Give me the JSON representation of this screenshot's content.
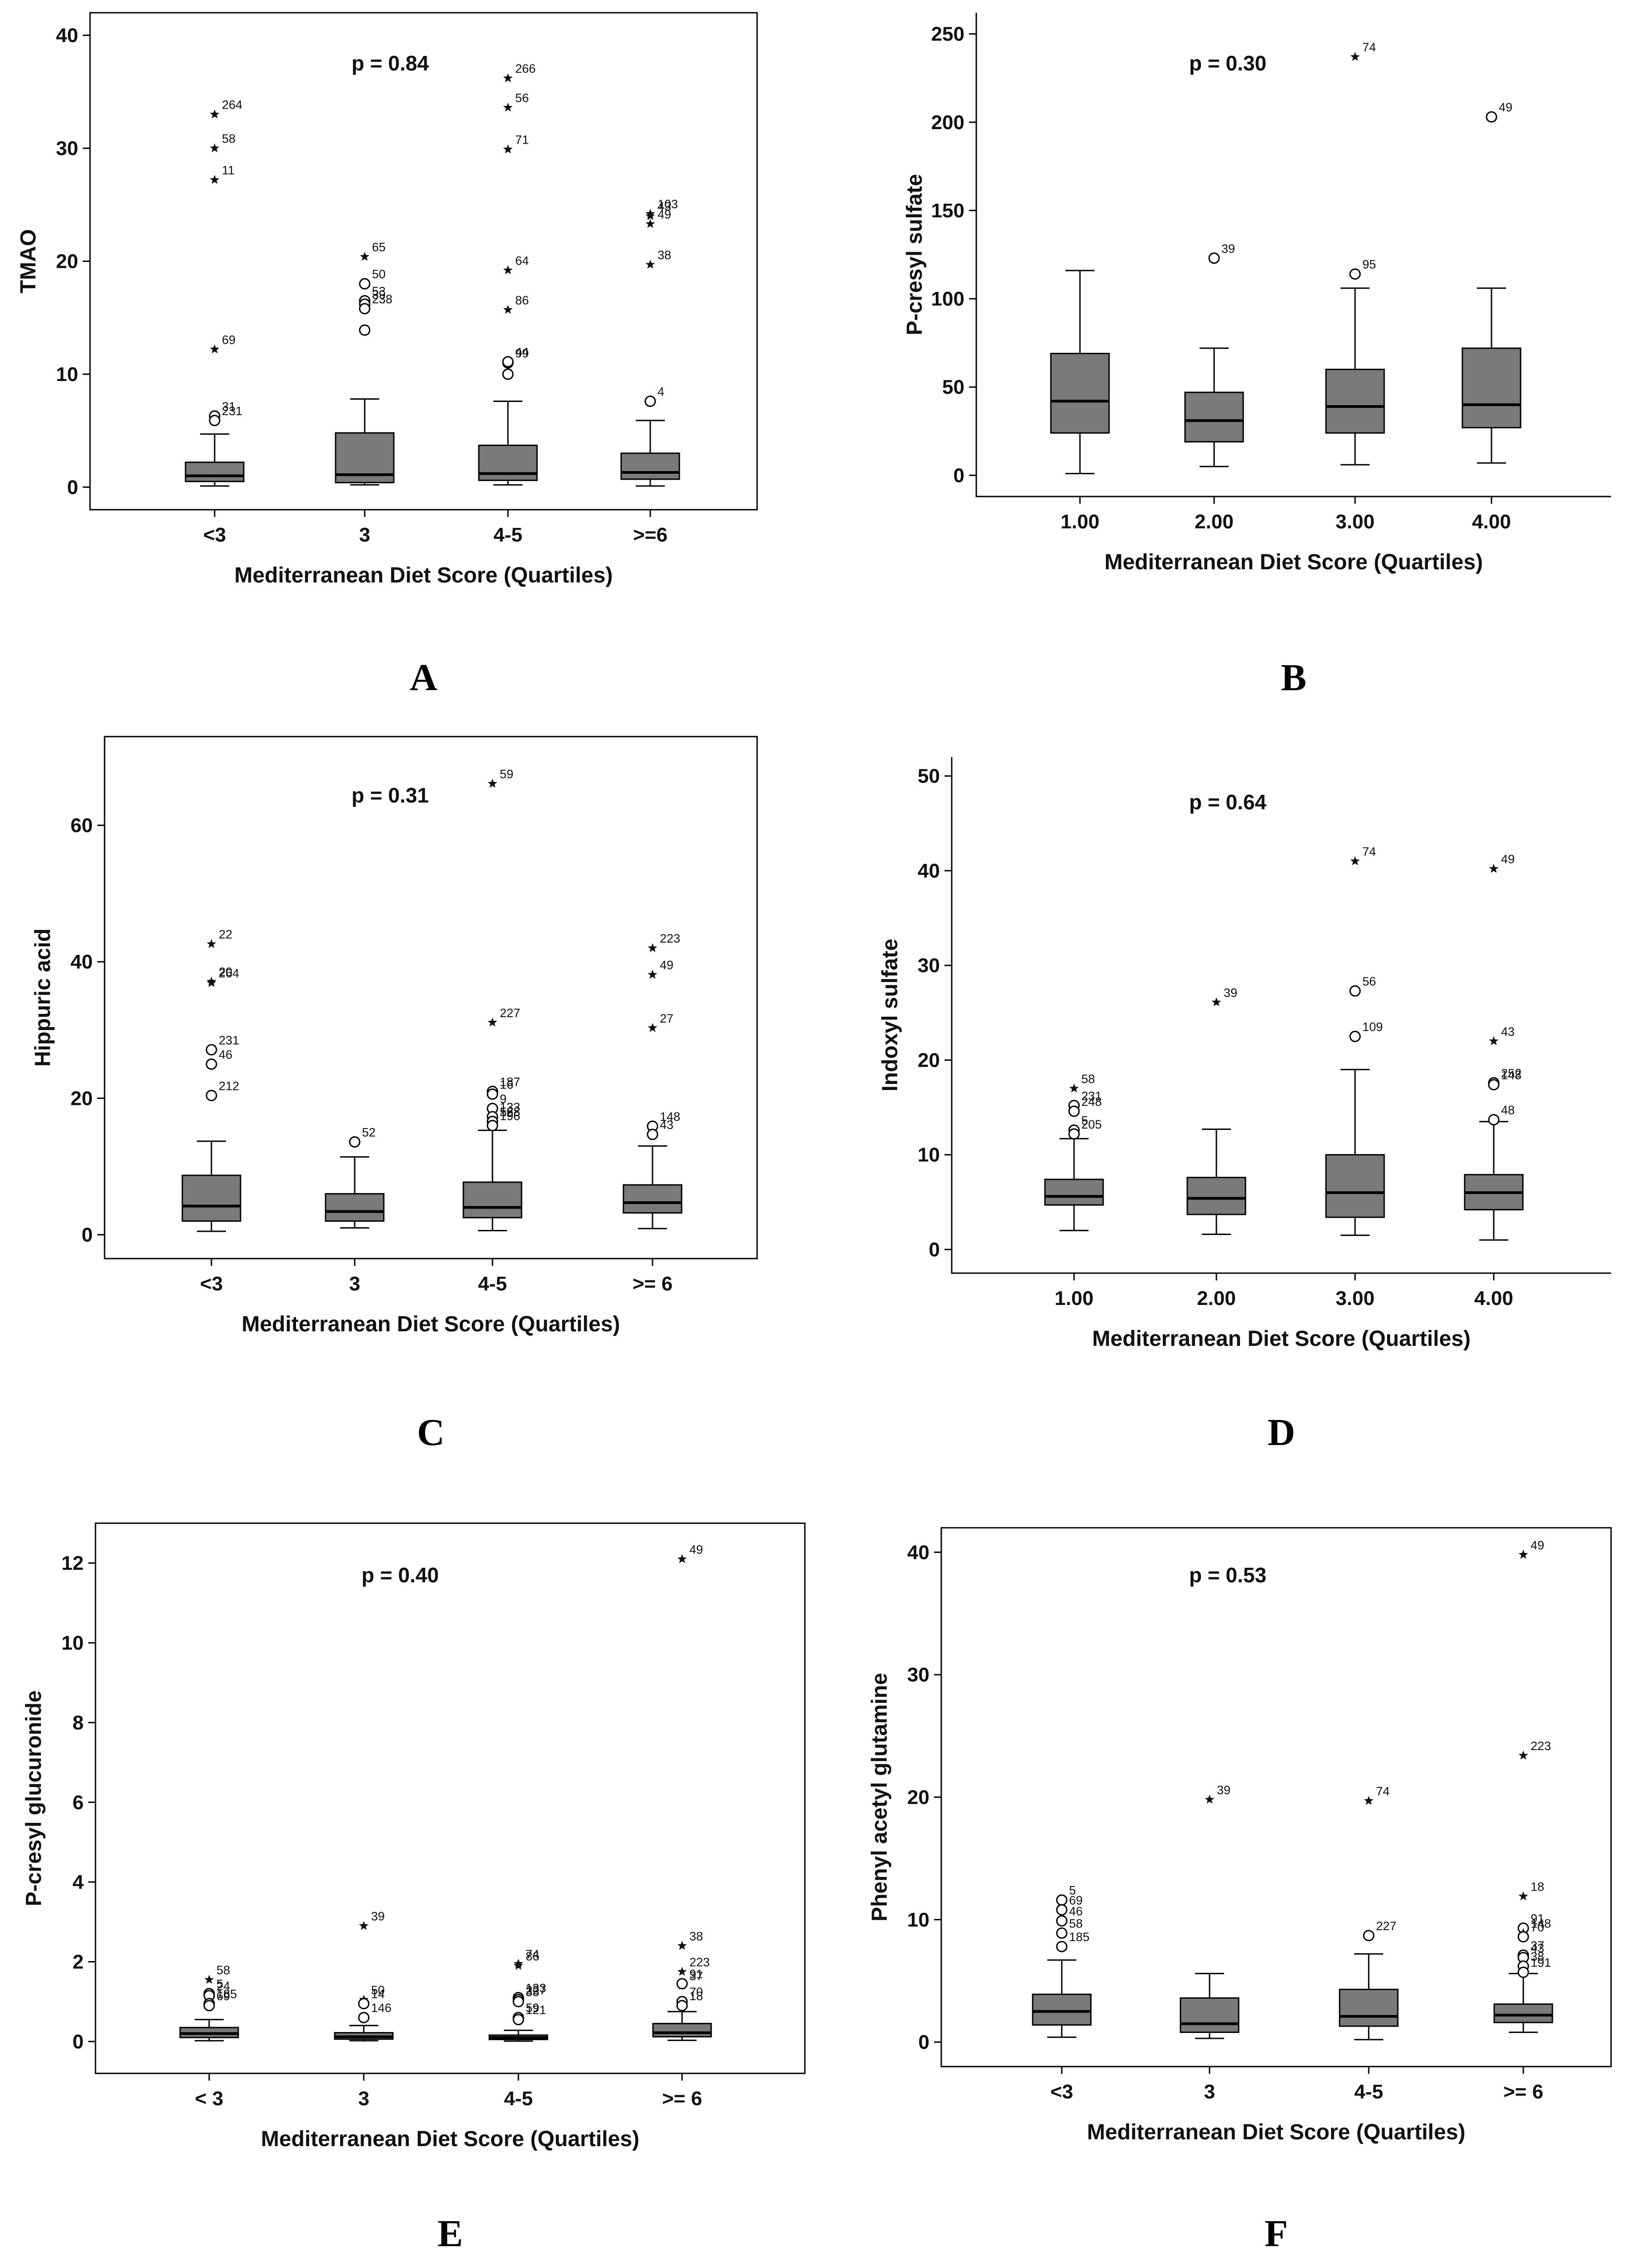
{
  "chart_data": [
    {
      "type": "box",
      "panel_letter": "A",
      "ylabel": "TMAO",
      "xlabel": "Mediterranean Diet Score (Quartiles)",
      "p_value": "p = 0.84",
      "ylim": [
        -2,
        42
      ],
      "yticks": [
        "0",
        "10",
        "20",
        "30",
        "40"
      ],
      "categories": [
        "<3",
        "3",
        "4-5",
        ">=6"
      ],
      "boxes": [
        {
          "min": 0.1,
          "q1": 0.5,
          "median": 1.0,
          "q3": 2.2,
          "max": 4.7
        },
        {
          "min": 0.2,
          "q1": 0.4,
          "median": 1.1,
          "q3": 4.8,
          "max": 7.8
        },
        {
          "min": 0.2,
          "q1": 0.6,
          "median": 1.2,
          "q3": 3.7,
          "max": 7.6
        },
        {
          "min": 0.1,
          "q1": 0.7,
          "median": 1.3,
          "q3": 3.0,
          "max": 5.9
        }
      ],
      "outliers": [
        {
          "cat": 0,
          "value": 33.0,
          "label": "264",
          "shape": "star"
        },
        {
          "cat": 0,
          "value": 30.0,
          "label": "58",
          "shape": "star"
        },
        {
          "cat": 0,
          "value": 27.2,
          "label": "11",
          "shape": "star"
        },
        {
          "cat": 0,
          "value": 12.2,
          "label": "69",
          "shape": "star"
        },
        {
          "cat": 0,
          "value": 6.3,
          "label": "31",
          "shape": "circle"
        },
        {
          "cat": 0,
          "value": 5.9,
          "label": "231",
          "shape": "circle"
        },
        {
          "cat": 1,
          "value": 20.4,
          "label": "65",
          "shape": "star"
        },
        {
          "cat": 1,
          "value": 18.0,
          "label": "50",
          "shape": "circle"
        },
        {
          "cat": 1,
          "value": 16.5,
          "label": "53",
          "shape": "circle"
        },
        {
          "cat": 1,
          "value": 16.2,
          "label": "39",
          "shape": "circle"
        },
        {
          "cat": 1,
          "value": 15.8,
          "label": "238",
          "shape": "circle"
        },
        {
          "cat": 1,
          "value": 13.9,
          "label": "",
          "shape": "circle"
        },
        {
          "cat": 2,
          "value": 36.2,
          "label": "266",
          "shape": "star"
        },
        {
          "cat": 2,
          "value": 33.6,
          "label": "56",
          "shape": "star"
        },
        {
          "cat": 2,
          "value": 29.9,
          "label": "71",
          "shape": "star"
        },
        {
          "cat": 2,
          "value": 19.2,
          "label": "64",
          "shape": "star"
        },
        {
          "cat": 2,
          "value": 15.7,
          "label": "86",
          "shape": "star"
        },
        {
          "cat": 2,
          "value": 11.0,
          "label": "99",
          "shape": "circle"
        },
        {
          "cat": 2,
          "value": 11.1,
          "label": "44",
          "shape": "circle"
        },
        {
          "cat": 2,
          "value": 10.0,
          "label": "",
          "shape": "circle"
        },
        {
          "cat": 3,
          "value": 24.0,
          "label": "43",
          "shape": "star"
        },
        {
          "cat": 3,
          "value": 24.2,
          "label": "103",
          "shape": "star"
        },
        {
          "cat": 3,
          "value": 23.3,
          "label": "49",
          "shape": "star"
        },
        {
          "cat": 3,
          "value": 19.7,
          "label": "38",
          "shape": "star"
        },
        {
          "cat": 3,
          "value": 7.6,
          "label": "4",
          "shape": "circle"
        }
      ]
    },
    {
      "type": "box",
      "panel_letter": "B",
      "ylabel": "P-cresyl sulfate",
      "xlabel": "Mediterranean Diet Score (Quartiles)",
      "p_value": "p = 0.30",
      "ylim": [
        -12,
        262
      ],
      "yticks": [
        "0",
        "50",
        "100",
        "150",
        "200",
        "250"
      ],
      "categories": [
        "1.00",
        "2.00",
        "3.00",
        "4.00"
      ],
      "boxes": [
        {
          "min": 1,
          "q1": 24,
          "median": 42,
          "q3": 69,
          "max": 116
        },
        {
          "min": 5,
          "q1": 19,
          "median": 31,
          "q3": 47,
          "max": 72
        },
        {
          "min": 6,
          "q1": 24,
          "median": 39,
          "q3": 60,
          "max": 106
        },
        {
          "min": 7,
          "q1": 27,
          "median": 40,
          "q3": 72,
          "max": 106
        }
      ],
      "outliers": [
        {
          "cat": 1,
          "value": 123,
          "label": "39",
          "shape": "circle"
        },
        {
          "cat": 2,
          "value": 237,
          "label": "74",
          "shape": "star"
        },
        {
          "cat": 2,
          "value": 114,
          "label": "95",
          "shape": "circle"
        },
        {
          "cat": 3,
          "value": 203,
          "label": "49",
          "shape": "circle"
        }
      ]
    },
    {
      "type": "box",
      "panel_letter": "C",
      "ylabel": "Hippuric acid",
      "xlabel": "Mediterranean Diet Score (Quartiles)",
      "p_value": "p = 0.31",
      "ylim": [
        -3.5,
        73
      ],
      "yticks": [
        "0",
        "20",
        "40",
        "60"
      ],
      "categories": [
        "<3",
        "3",
        "4-5",
        ">= 6"
      ],
      "boxes": [
        {
          "min": 0.5,
          "q1": 2.0,
          "median": 4.2,
          "q3": 8.7,
          "max": 13.7
        },
        {
          "min": 1.0,
          "q1": 2.0,
          "median": 3.4,
          "q3": 6.0,
          "max": 11.4
        },
        {
          "min": 0.6,
          "q1": 2.5,
          "median": 4.0,
          "q3": 7.7,
          "max": 15.3
        },
        {
          "min": 0.9,
          "q1": 3.2,
          "median": 4.7,
          "q3": 7.3,
          "max": 13.0
        }
      ],
      "outliers": [
        {
          "cat": 0,
          "value": 42.6,
          "label": "22",
          "shape": "star"
        },
        {
          "cat": 0,
          "value": 37.1,
          "label": "20",
          "shape": "star"
        },
        {
          "cat": 0,
          "value": 36.9,
          "label": "264",
          "shape": "star"
        },
        {
          "cat": 0,
          "value": 27.1,
          "label": "231",
          "shape": "circle"
        },
        {
          "cat": 0,
          "value": 25.0,
          "label": "46",
          "shape": "circle"
        },
        {
          "cat": 0,
          "value": 20.4,
          "label": "212",
          "shape": "circle"
        },
        {
          "cat": 1,
          "value": 13.6,
          "label": "52",
          "shape": "circle"
        },
        {
          "cat": 2,
          "value": 66.1,
          "label": "59",
          "shape": "star"
        },
        {
          "cat": 2,
          "value": 31.1,
          "label": "227",
          "shape": "star"
        },
        {
          "cat": 2,
          "value": 21.0,
          "label": "187",
          "shape": "circle"
        },
        {
          "cat": 2,
          "value": 20.6,
          "label": "16",
          "shape": "circle"
        },
        {
          "cat": 2,
          "value": 18.5,
          "label": "9",
          "shape": "circle"
        },
        {
          "cat": 2,
          "value": 17.3,
          "label": "133",
          "shape": "circle"
        },
        {
          "cat": 2,
          "value": 16.6,
          "label": "56",
          "shape": "circle"
        },
        {
          "cat": 2,
          "value": 16.6,
          "label": "128",
          "shape": "circle"
        },
        {
          "cat": 2,
          "value": 16.0,
          "label": "196",
          "shape": "circle"
        },
        {
          "cat": 3,
          "value": 42.0,
          "label": "223",
          "shape": "star"
        },
        {
          "cat": 3,
          "value": 38.1,
          "label": "49",
          "shape": "star"
        },
        {
          "cat": 3,
          "value": 30.3,
          "label": "27",
          "shape": "star"
        },
        {
          "cat": 3,
          "value": 15.9,
          "label": "148",
          "shape": "circle"
        },
        {
          "cat": 3,
          "value": 14.7,
          "label": "43",
          "shape": "circle"
        }
      ]
    },
    {
      "type": "box",
      "panel_letter": "D",
      "ylabel": "Indoxyl sulfate",
      "xlabel": "Mediterranean Diet Score (Quartiles)",
      "p_value": "p = 0.64",
      "ylim": [
        -2.5,
        52
      ],
      "yticks": [
        "0",
        "10",
        "20",
        "30",
        "40",
        "50"
      ],
      "categories": [
        "1.00",
        "2.00",
        "3.00",
        "4.00"
      ],
      "boxes": [
        {
          "min": 2.0,
          "q1": 4.7,
          "median": 5.6,
          "q3": 7.4,
          "max": 11.7
        },
        {
          "min": 1.6,
          "q1": 3.7,
          "median": 5.4,
          "q3": 7.6,
          "max": 12.7
        },
        {
          "min": 1.5,
          "q1": 3.4,
          "median": 6.0,
          "q3": 10.0,
          "max": 19.0
        },
        {
          "min": 1.0,
          "q1": 4.2,
          "median": 6.0,
          "q3": 7.9,
          "max": 13.5
        }
      ],
      "outliers": [
        {
          "cat": 0,
          "value": 17.0,
          "label": "58",
          "shape": "star"
        },
        {
          "cat": 0,
          "value": 15.2,
          "label": "231",
          "shape": "circle"
        },
        {
          "cat": 0,
          "value": 14.6,
          "label": "248",
          "shape": "circle"
        },
        {
          "cat": 0,
          "value": 12.6,
          "label": "5",
          "shape": "circle"
        },
        {
          "cat": 0,
          "value": 12.2,
          "label": "205",
          "shape": "circle"
        },
        {
          "cat": 1,
          "value": 26.1,
          "label": "39",
          "shape": "star"
        },
        {
          "cat": 2,
          "value": 41.0,
          "label": "74",
          "shape": "star"
        },
        {
          "cat": 2,
          "value": 27.3,
          "label": "56",
          "shape": "circle"
        },
        {
          "cat": 2,
          "value": 22.5,
          "label": "109",
          "shape": "circle"
        },
        {
          "cat": 3,
          "value": 40.2,
          "label": "49",
          "shape": "star"
        },
        {
          "cat": 3,
          "value": 22.0,
          "label": "43",
          "shape": "star"
        },
        {
          "cat": 3,
          "value": 17.6,
          "label": "252",
          "shape": "circle"
        },
        {
          "cat": 3,
          "value": 17.4,
          "label": "148",
          "shape": "circle"
        },
        {
          "cat": 3,
          "value": 13.7,
          "label": "48",
          "shape": "circle"
        }
      ]
    },
    {
      "type": "box",
      "panel_letter": "E",
      "ylabel": "P-cresyl glucuronide",
      "xlabel": "Mediterranean Diet Score (Quartiles)",
      "p_value": "p = 0.40",
      "ylim": [
        -0.8,
        13.0
      ],
      "yticks": [
        "0",
        "2",
        "4",
        "6",
        "8",
        "10",
        "12"
      ],
      "categories": [
        "< 3",
        "3",
        "4-5",
        ">= 6"
      ],
      "boxes": [
        {
          "min": 0.02,
          "q1": 0.1,
          "median": 0.2,
          "q3": 0.35,
          "max": 0.55
        },
        {
          "min": 0.02,
          "q1": 0.06,
          "median": 0.12,
          "q3": 0.22,
          "max": 0.4
        },
        {
          "min": 0.01,
          "q1": 0.05,
          "median": 0.1,
          "q3": 0.16,
          "max": 0.28
        },
        {
          "min": 0.03,
          "q1": 0.12,
          "median": 0.22,
          "q3": 0.45,
          "max": 0.75
        }
      ],
      "outliers": [
        {
          "cat": 0,
          "value": 1.55,
          "label": "58",
          "shape": "star"
        },
        {
          "cat": 0,
          "value": 1.2,
          "label": "5",
          "shape": "circle"
        },
        {
          "cat": 0,
          "value": 1.15,
          "label": "24",
          "shape": "circle"
        },
        {
          "cat": 0,
          "value": 0.95,
          "label": "185",
          "shape": "circle"
        },
        {
          "cat": 0,
          "value": 0.9,
          "label": "69",
          "shape": "circle"
        },
        {
          "cat": 1,
          "value": 2.9,
          "label": "39",
          "shape": "star"
        },
        {
          "cat": 1,
          "value": 1.05,
          "label": "50",
          "shape": "star"
        },
        {
          "cat": 1,
          "value": 0.95,
          "label": "14",
          "shape": "circle"
        },
        {
          "cat": 1,
          "value": 0.6,
          "label": "146",
          "shape": "circle"
        },
        {
          "cat": 2,
          "value": 1.95,
          "label": "74",
          "shape": "star"
        },
        {
          "cat": 2,
          "value": 1.9,
          "label": "86",
          "shape": "star"
        },
        {
          "cat": 2,
          "value": 1.1,
          "label": "133",
          "shape": "circle"
        },
        {
          "cat": 2,
          "value": 1.05,
          "label": "227",
          "shape": "circle"
        },
        {
          "cat": 2,
          "value": 1.0,
          "label": "35",
          "shape": "circle"
        },
        {
          "cat": 2,
          "value": 0.6,
          "label": "59",
          "shape": "circle"
        },
        {
          "cat": 2,
          "value": 0.55,
          "label": "121",
          "shape": "circle"
        },
        {
          "cat": 3,
          "value": 12.1,
          "label": "49",
          "shape": "star"
        },
        {
          "cat": 3,
          "value": 2.4,
          "label": "38",
          "shape": "star"
        },
        {
          "cat": 3,
          "value": 1.75,
          "label": "223",
          "shape": "star"
        },
        {
          "cat": 3,
          "value": 1.4,
          "label": "37",
          "shape": "star"
        },
        {
          "cat": 3,
          "value": 1.45,
          "label": "91",
          "shape": "circle"
        },
        {
          "cat": 3,
          "value": 1.0,
          "label": "70",
          "shape": "circle"
        },
        {
          "cat": 3,
          "value": 0.9,
          "label": "18",
          "shape": "circle"
        }
      ]
    },
    {
      "type": "box",
      "panel_letter": "F",
      "ylabel": "Phenyl acetyl glutamine",
      "xlabel": "Mediterranean Diet Score (Quartiles)",
      "p_value": "p = 0.53",
      "ylim": [
        -2,
        42
      ],
      "yticks": [
        "0",
        "10",
        "20",
        "30",
        "40"
      ],
      "categories": [
        "<3",
        "3",
        "4-5",
        ">= 6"
      ],
      "boxes": [
        {
          "min": 0.4,
          "q1": 1.4,
          "median": 2.5,
          "q3": 3.9,
          "max": 6.7
        },
        {
          "min": 0.3,
          "q1": 0.8,
          "median": 1.5,
          "q3": 3.6,
          "max": 5.6
        },
        {
          "min": 0.2,
          "q1": 1.3,
          "median": 2.1,
          "q3": 4.3,
          "max": 7.2
        },
        {
          "min": 0.8,
          "q1": 1.6,
          "median": 2.2,
          "q3": 3.1,
          "max": 5.6
        }
      ],
      "outliers": [
        {
          "cat": 0,
          "value": 11.6,
          "label": "5",
          "shape": "circle"
        },
        {
          "cat": 0,
          "value": 10.8,
          "label": "69",
          "shape": "circle"
        },
        {
          "cat": 0,
          "value": 9.9,
          "label": "46",
          "shape": "circle"
        },
        {
          "cat": 0,
          "value": 8.9,
          "label": "58",
          "shape": "circle"
        },
        {
          "cat": 0,
          "value": 7.8,
          "label": "185",
          "shape": "circle"
        },
        {
          "cat": 1,
          "value": 19.8,
          "label": "39",
          "shape": "star"
        },
        {
          "cat": 2,
          "value": 19.7,
          "label": "74",
          "shape": "star"
        },
        {
          "cat": 2,
          "value": 8.7,
          "label": "227",
          "shape": "circle"
        },
        {
          "cat": 3,
          "value": 39.8,
          "label": "49",
          "shape": "star"
        },
        {
          "cat": 3,
          "value": 23.4,
          "label": "223",
          "shape": "star"
        },
        {
          "cat": 3,
          "value": 11.9,
          "label": "18",
          "shape": "star"
        },
        {
          "cat": 3,
          "value": 9.3,
          "label": "91",
          "shape": "circle"
        },
        {
          "cat": 3,
          "value": 8.9,
          "label": "148",
          "shape": "star"
        },
        {
          "cat": 3,
          "value": 8.6,
          "label": "70",
          "shape": "circle"
        },
        {
          "cat": 3,
          "value": 7.1,
          "label": "37",
          "shape": "circle"
        },
        {
          "cat": 3,
          "value": 6.9,
          "label": "43",
          "shape": "circle"
        },
        {
          "cat": 3,
          "value": 6.2,
          "label": "38",
          "shape": "circle"
        },
        {
          "cat": 3,
          "value": 5.7,
          "label": "191",
          "shape": "circle"
        }
      ]
    }
  ]
}
